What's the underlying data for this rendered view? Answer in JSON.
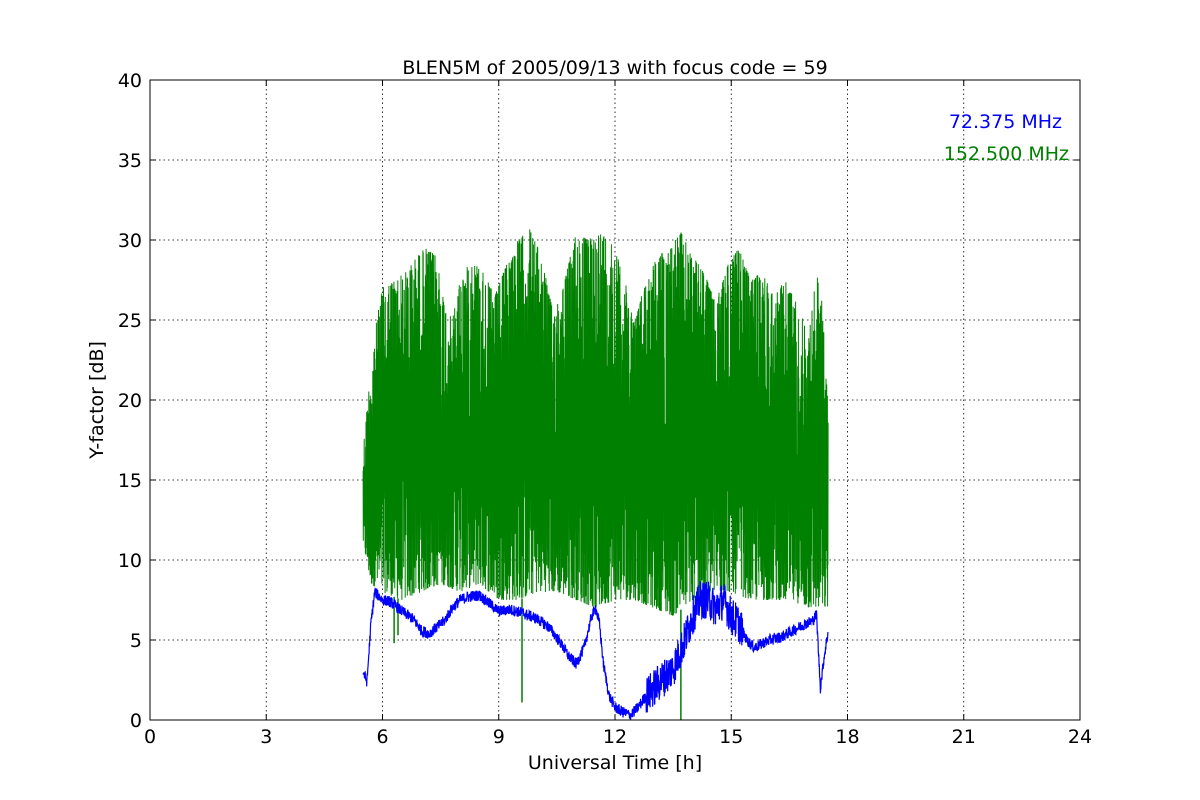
{
  "chart_data": {
    "type": "line",
    "title": "BLEN5M of 2005/09/13 with focus code = 59",
    "xlabel": "Universal Time [h]",
    "ylabel": "Y-factor [dB]",
    "xlim": [
      0,
      24
    ],
    "ylim": [
      0,
      40
    ],
    "x_ticks": [
      0,
      3,
      6,
      9,
      12,
      15,
      18,
      21,
      24
    ],
    "y_ticks": [
      0,
      5,
      10,
      15,
      20,
      25,
      30,
      35,
      40
    ],
    "grid": true,
    "legend_position": "top-right",
    "series": [
      {
        "name": "72.375 MHz",
        "color": "#0000ff",
        "points": [
          [
            5.5,
            3.0
          ],
          [
            5.6,
            2.4
          ],
          [
            5.7,
            6.0
          ],
          [
            5.8,
            8.0
          ],
          [
            6.0,
            7.5
          ],
          [
            6.2,
            7.4
          ],
          [
            6.5,
            6.8
          ],
          [
            6.8,
            6.3
          ],
          [
            7.0,
            5.6
          ],
          [
            7.2,
            5.4
          ],
          [
            7.4,
            5.8
          ],
          [
            7.6,
            6.2
          ],
          [
            7.8,
            7.0
          ],
          [
            8.0,
            7.5
          ],
          [
            8.2,
            7.7
          ],
          [
            8.5,
            7.8
          ],
          [
            8.8,
            7.2
          ],
          [
            9.0,
            6.8
          ],
          [
            9.3,
            6.9
          ],
          [
            9.6,
            6.7
          ],
          [
            9.8,
            6.5
          ],
          [
            10.0,
            6.3
          ],
          [
            10.3,
            5.8
          ],
          [
            10.6,
            4.8
          ],
          [
            10.8,
            4.0
          ],
          [
            11.0,
            3.5
          ],
          [
            11.2,
            4.5
          ],
          [
            11.4,
            6.5
          ],
          [
            11.5,
            7.0
          ],
          [
            11.6,
            6.0
          ],
          [
            11.7,
            3.5
          ],
          [
            11.85,
            1.5
          ],
          [
            12.0,
            0.8
          ],
          [
            12.2,
            0.5
          ],
          [
            12.4,
            0.3
          ],
          [
            12.6,
            0.8
          ],
          [
            12.8,
            1.5
          ],
          [
            13.0,
            2.0
          ],
          [
            13.2,
            2.5
          ],
          [
            13.5,
            3.2
          ],
          [
            13.8,
            5.0
          ],
          [
            14.0,
            6.5
          ],
          [
            14.2,
            7.5
          ],
          [
            14.4,
            7.5
          ],
          [
            14.6,
            7.0
          ],
          [
            14.8,
            7.5
          ],
          [
            15.0,
            6.5
          ],
          [
            15.2,
            6.0
          ],
          [
            15.4,
            5.0
          ],
          [
            15.6,
            4.5
          ],
          [
            15.8,
            4.8
          ],
          [
            16.0,
            5.0
          ],
          [
            16.3,
            5.2
          ],
          [
            16.6,
            5.6
          ],
          [
            16.9,
            6.0
          ],
          [
            17.1,
            6.2
          ],
          [
            17.2,
            6.6
          ],
          [
            17.3,
            2.0
          ],
          [
            17.4,
            4.0
          ],
          [
            17.5,
            5.5
          ]
        ]
      },
      {
        "name": "152.500 MHz",
        "color": "#008000",
        "upper_envelope": [
          [
            5.5,
            17.0
          ],
          [
            5.7,
            22.0
          ],
          [
            5.85,
            25.0
          ],
          [
            6.0,
            27.0
          ],
          [
            6.3,
            27.5
          ],
          [
            6.6,
            28.0
          ],
          [
            6.9,
            29.0
          ],
          [
            7.1,
            29.5
          ],
          [
            7.4,
            29.0
          ],
          [
            7.6,
            26.0
          ],
          [
            7.8,
            25.0
          ],
          [
            8.0,
            27.5
          ],
          [
            8.3,
            28.8
          ],
          [
            8.6,
            28.0
          ],
          [
            8.9,
            26.5
          ],
          [
            9.2,
            28.5
          ],
          [
            9.5,
            30.0
          ],
          [
            9.8,
            30.7
          ],
          [
            10.1,
            29.0
          ],
          [
            10.4,
            25.5
          ],
          [
            10.7,
            27.5
          ],
          [
            11.0,
            30.5
          ],
          [
            11.3,
            30.0
          ],
          [
            11.6,
            30.5
          ],
          [
            11.9,
            30.0
          ],
          [
            12.2,
            28.0
          ],
          [
            12.5,
            25.0
          ],
          [
            12.8,
            27.5
          ],
          [
            13.1,
            29.0
          ],
          [
            13.4,
            29.5
          ],
          [
            13.7,
            30.5
          ],
          [
            14.0,
            29.0
          ],
          [
            14.3,
            28.0
          ],
          [
            14.6,
            26.0
          ],
          [
            14.9,
            28.5
          ],
          [
            15.2,
            29.5
          ],
          [
            15.5,
            27.5
          ],
          [
            15.8,
            28.0
          ],
          [
            16.1,
            26.5
          ],
          [
            16.4,
            27.5
          ],
          [
            16.7,
            26.0
          ],
          [
            17.0,
            24.0
          ],
          [
            17.2,
            28.0
          ],
          [
            17.35,
            26.0
          ],
          [
            17.5,
            19.5
          ]
        ],
        "lower_envelope": [
          [
            5.5,
            11.0
          ],
          [
            5.7,
            8.5
          ],
          [
            6.0,
            8.0
          ],
          [
            6.5,
            7.5
          ],
          [
            7.0,
            8.0
          ],
          [
            7.5,
            8.5
          ],
          [
            8.0,
            8.0
          ],
          [
            8.5,
            8.5
          ],
          [
            9.0,
            7.5
          ],
          [
            9.5,
            7.5
          ],
          [
            10.0,
            8.0
          ],
          [
            10.5,
            8.0
          ],
          [
            11.0,
            7.5
          ],
          [
            11.5,
            7.0
          ],
          [
            12.0,
            7.5
          ],
          [
            12.5,
            7.5
          ],
          [
            13.0,
            7.0
          ],
          [
            13.5,
            6.5
          ],
          [
            14.0,
            7.5
          ],
          [
            14.5,
            8.0
          ],
          [
            15.0,
            8.0
          ],
          [
            15.5,
            7.5
          ],
          [
            16.0,
            7.5
          ],
          [
            16.5,
            7.5
          ],
          [
            17.0,
            7.0
          ],
          [
            17.5,
            7.0
          ]
        ],
        "spikes_down": [
          [
            6.3,
            4.8
          ],
          [
            6.4,
            5.3
          ],
          [
            9.6,
            1.1
          ],
          [
            13.7,
            0.0
          ]
        ],
        "spikes_up": [
          [
            11.5,
            22.0
          ],
          [
            14.0,
            19.5
          ]
        ]
      }
    ]
  }
}
